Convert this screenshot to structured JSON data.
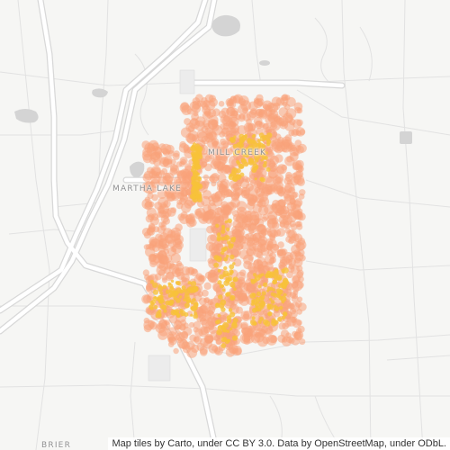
{
  "map": {
    "place_labels": {
      "martha_lake": "MARTHA LAKE",
      "mill_creek": "MILL CREEK",
      "brier": "BRIER"
    },
    "attribution": "Map tiles by Carto, under CC BY 3.0. Data by OpenStreetMap, under ODbL.",
    "colors": {
      "land": "#f6f6f4",
      "water": "#d4d4d4",
      "minor_road": "#e2e2e2",
      "major_road": "#ffffff",
      "major_road_casing": "#d8d8d8",
      "heat_outer": "#f9a27a",
      "heat_inner": "#f7c23a"
    }
  }
}
